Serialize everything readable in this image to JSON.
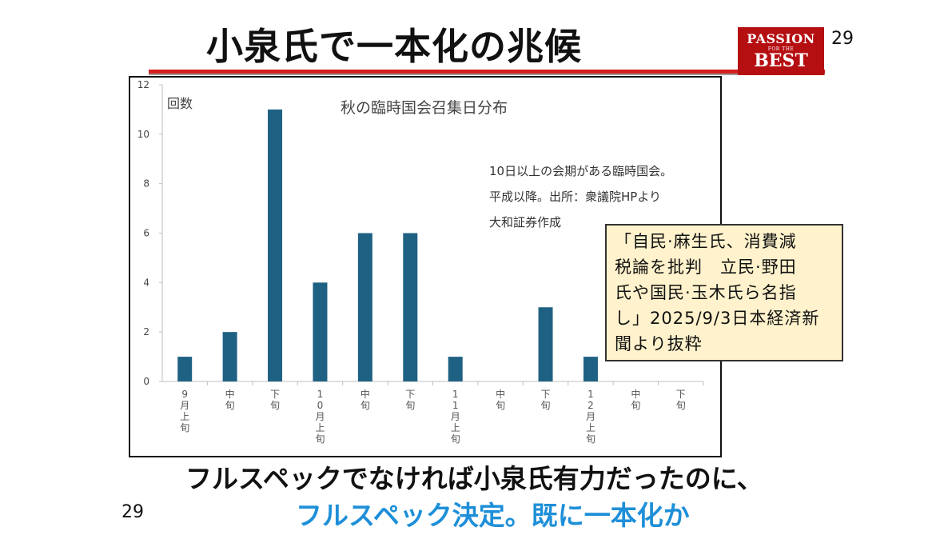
{
  "slide": {
    "title": "小泉氏で一本化の兆候",
    "number_top": "29",
    "number_bottom": "29",
    "logo": {
      "line1": "PASSION",
      "line2": "FOR THE",
      "line3": "BEST"
    },
    "caption_line1": "フルスペックでなければ小泉氏有力だったのに、",
    "caption_line2": "フルスペック決定。既に一本化か",
    "callout_lines": [
      "「自民·麻生氏、消費減",
      "税論を批判　立民·野田",
      "氏や国民·玉木氏ら名指",
      "し」2025/9/3日本経済新",
      "聞より抜粋"
    ]
  },
  "colors": {
    "bar": "#1f6183",
    "grid": "#d9d9d9",
    "accent": "#d41f1f",
    "caption_blue": "#1e8fd8",
    "callout_bg": "#fff2cc"
  },
  "chart_data": {
    "type": "bar",
    "title": "秋の臨時国会召集日分布",
    "ylabel": "回数",
    "note_lines": [
      "10日以上の会期がある臨時国会。",
      "平成以降。出所：衆議院HPより",
      "大和証券作成"
    ],
    "categories": [
      "9月上旬",
      "中旬",
      "下旬",
      "10月上旬",
      "中旬",
      "下旬",
      "11月上旬",
      "中旬",
      "下旬",
      "12月上旬",
      "中旬",
      "下旬"
    ],
    "values": [
      1,
      2,
      11,
      4,
      6,
      6,
      1,
      0,
      3,
      1,
      0,
      0
    ],
    "ylim": [
      0,
      12
    ],
    "yticks": [
      0,
      2,
      4,
      6,
      8,
      10,
      12
    ],
    "grid": false
  }
}
